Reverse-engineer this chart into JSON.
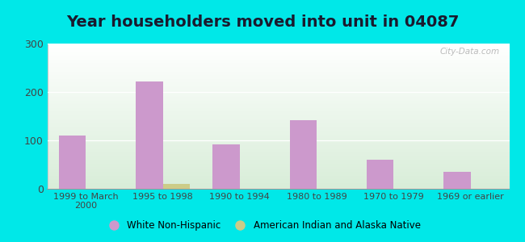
{
  "title": "Year householders moved into unit in 04087",
  "categories": [
    "1999 to March\n2000",
    "1995 to 1998",
    "1990 to 1994",
    "1980 to 1989",
    "1970 to 1979",
    "1969 or earlier"
  ],
  "white_non_hispanic": [
    110,
    222,
    92,
    142,
    60,
    35
  ],
  "american_indian": [
    0,
    10,
    0,
    0,
    0,
    0
  ],
  "white_color": "#cc99cc",
  "indian_color": "#cccc88",
  "bg_color": "#00e8e8",
  "ylim": [
    0,
    300
  ],
  "yticks": [
    0,
    100,
    200,
    300
  ],
  "bar_width": 0.35,
  "title_fontsize": 14,
  "title_color": "#1a1a2e",
  "legend_labels": [
    "White Non-Hispanic",
    "American Indian and Alaska Native"
  ]
}
